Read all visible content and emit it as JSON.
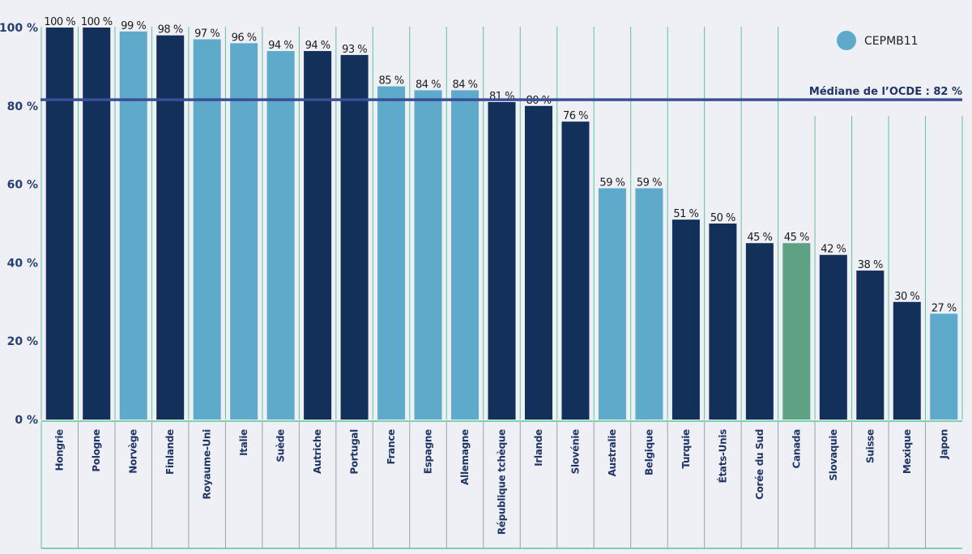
{
  "chart_data": {
    "type": "bar",
    "categories": [
      "Hongrie",
      "Pologne",
      "Norvège",
      "Finlande",
      "Royaume-Uni",
      "Italie",
      "Suède",
      "Autriche",
      "Portugal",
      "France",
      "Espagne",
      "Allemagne",
      "République tchèque",
      "Irlande",
      "Slovénie",
      "Australie",
      "Belgique",
      "Turquie",
      "États-Unis",
      "Corée du Sud",
      "Canada",
      "Slovaquie",
      "Suisse",
      "Mexique",
      "Japon"
    ],
    "values": [
      100,
      100,
      99,
      98,
      97,
      96,
      94,
      94,
      93,
      85,
      84,
      84,
      81,
      80,
      76,
      59,
      59,
      51,
      50,
      45,
      45,
      42,
      38,
      30,
      27
    ],
    "value_labels": [
      "100 %",
      "100 %",
      "99 %",
      "98 %",
      "97 %",
      "96 %",
      "94 %",
      "94 %",
      "93 %",
      "85 %",
      "84 %",
      "84 %",
      "81 %",
      "80 %",
      "76 %",
      "59 %",
      "59 %",
      "51 %",
      "50 %",
      "45 %",
      "45 %",
      "42 %",
      "38 %",
      "30 %",
      "27 %"
    ],
    "groups": [
      "other",
      "other",
      "cepmb11",
      "other",
      "cepmb11",
      "cepmb11",
      "cepmb11",
      "other",
      "other",
      "cepmb11",
      "cepmb11",
      "cepmb11",
      "other",
      "other",
      "other",
      "cepmb11",
      "cepmb11",
      "other",
      "other",
      "other",
      "canada",
      "other",
      "other",
      "other",
      "cepmb11"
    ],
    "ylim": [
      0,
      100
    ],
    "yticks": [
      0,
      20,
      40,
      60,
      80,
      100
    ],
    "ytick_labels": [
      "0 %",
      "20 %",
      "40 %",
      "60 %",
      "80 %",
      "100 %"
    ],
    "median": {
      "value": 82,
      "label": "Médiane de l’OCDE : 82 %"
    },
    "legend": {
      "entries": [
        {
          "label": "CEPMB11",
          "group": "cepmb11"
        }
      ],
      "placement": "top-right"
    },
    "colors": {
      "other": "#13305a",
      "cepmb11": "#5eaaca",
      "canada": "#5da283",
      "median": "#3a4f96",
      "separator": "#5cc49a",
      "label_separator": "#9aa0aa"
    },
    "grid": false
  }
}
